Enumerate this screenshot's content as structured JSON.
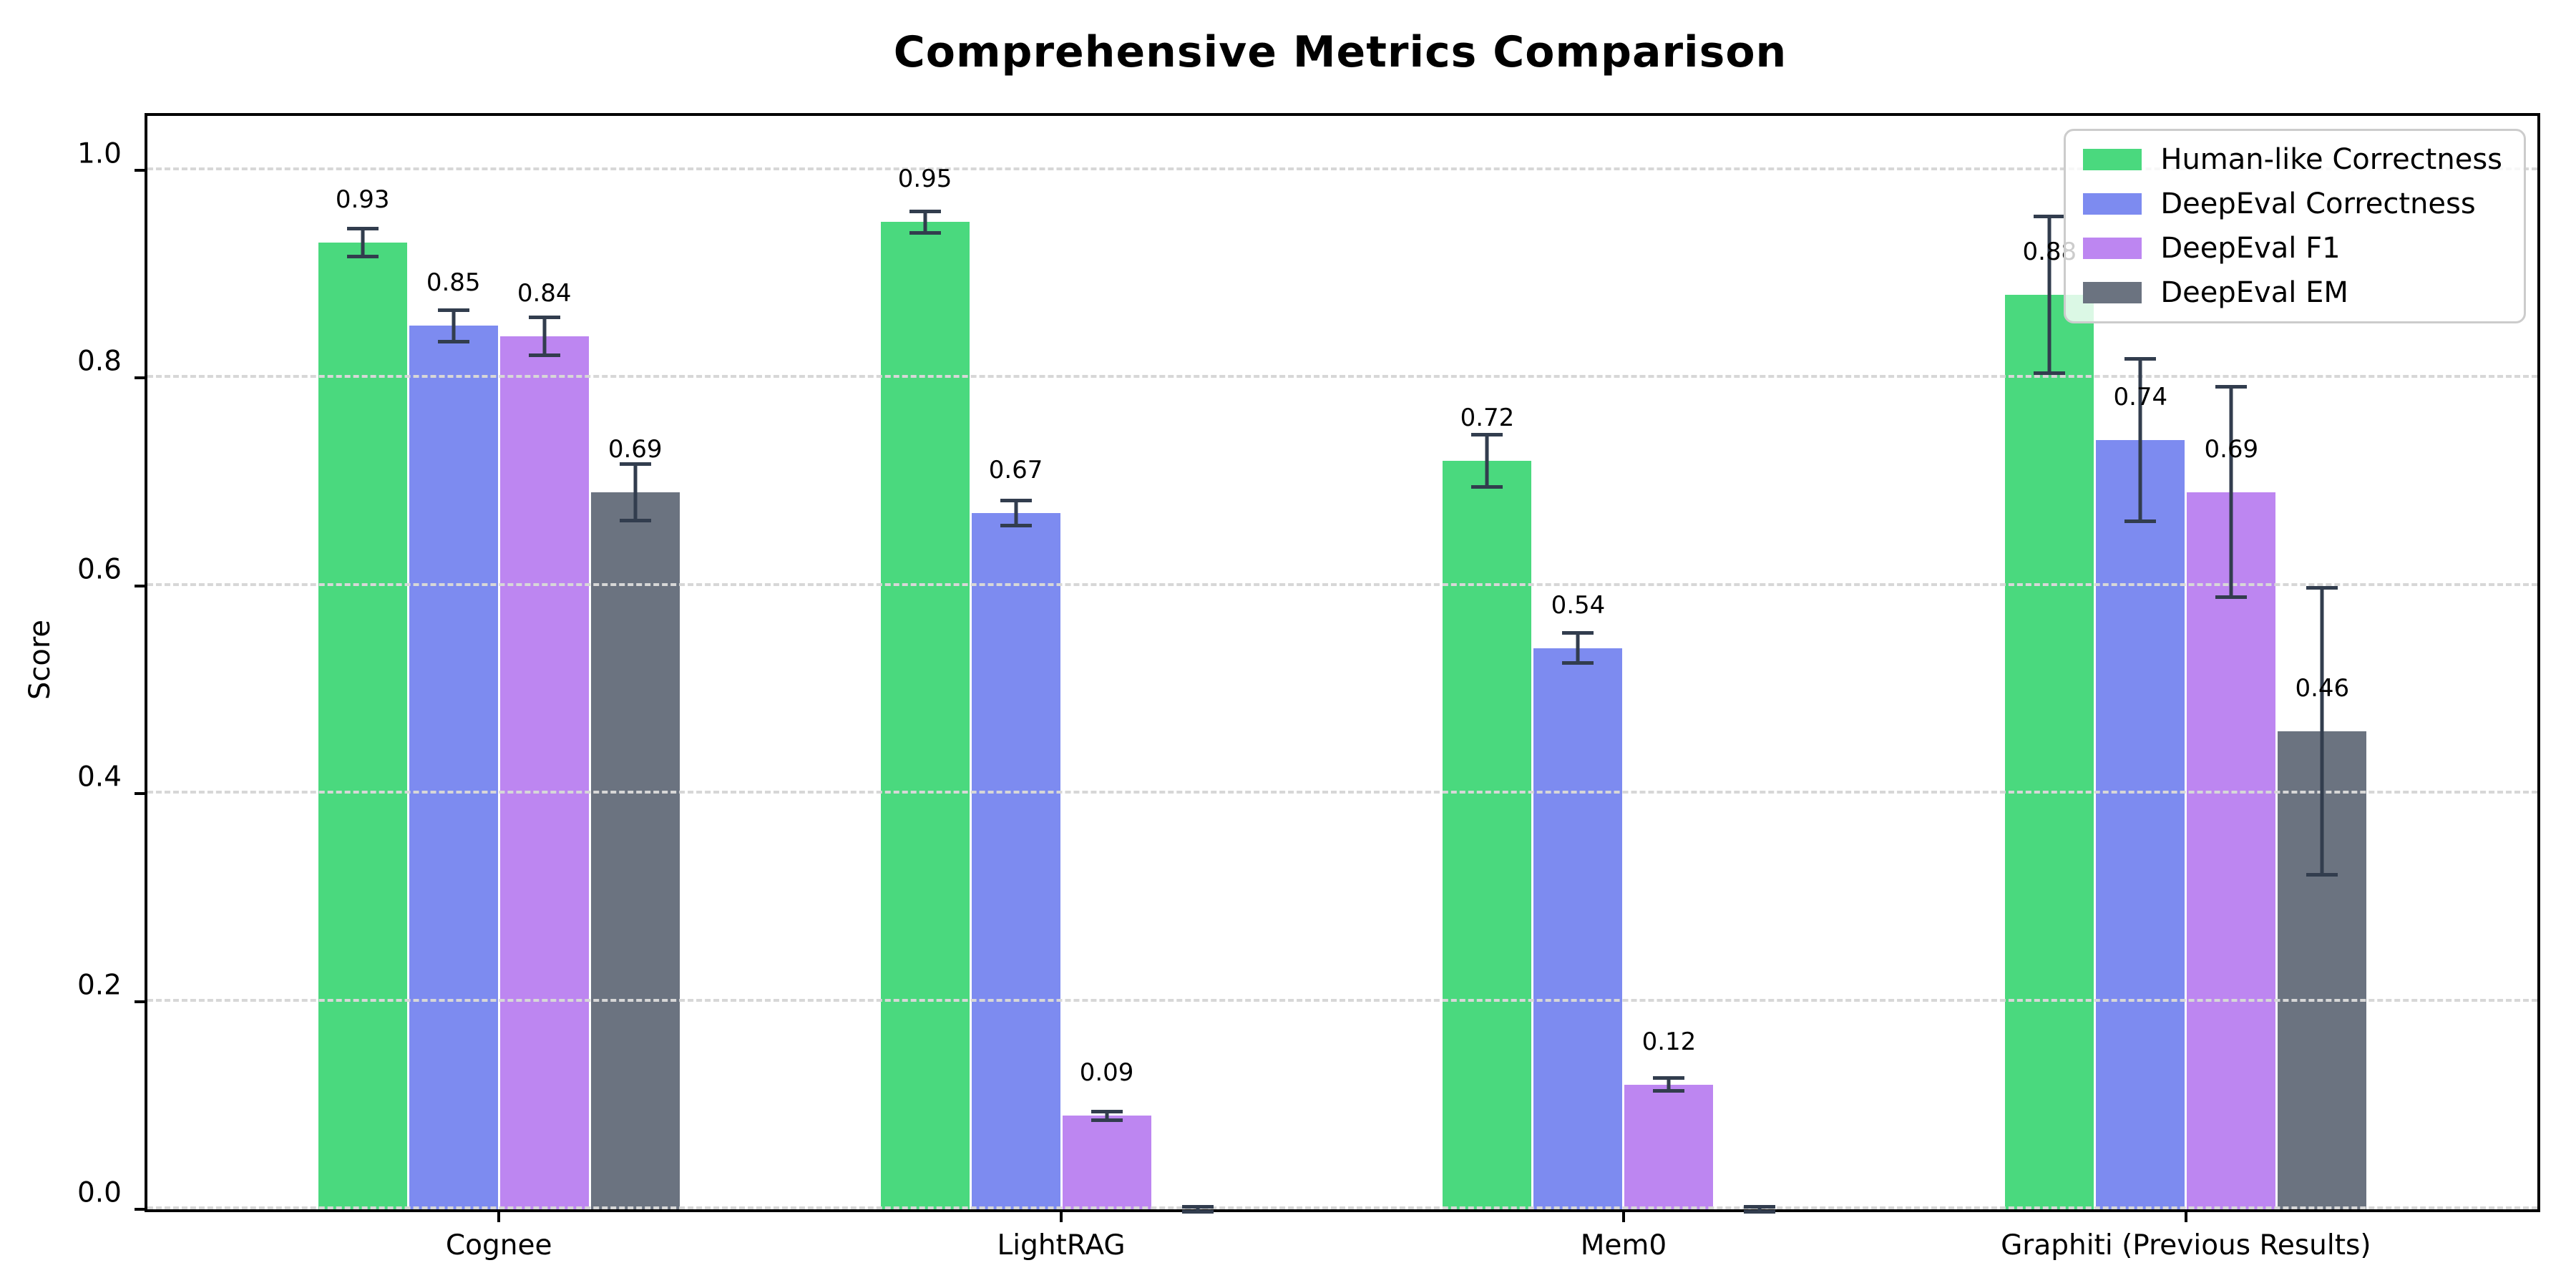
{
  "title": "Comprehensive Metrics Comparison",
  "y_axis_label": "Score",
  "chart_data": {
    "type": "bar",
    "title": "Comprehensive Metrics Comparison",
    "xlabel": "",
    "ylabel": "Score",
    "categories": [
      "Cognee",
      "LightRAG",
      "Mem0",
      "Graphiti (Previous Results)"
    ],
    "series": [
      {
        "name": "Human-like Correctness",
        "color": "#4ad97e",
        "values": [
          0.93,
          0.95,
          0.72,
          0.88
        ],
        "errors": [
          0.015,
          0.012,
          0.027,
          0.077
        ]
      },
      {
        "name": "DeepEval Correctness",
        "color": "#7d8bf0",
        "values": [
          0.85,
          0.67,
          0.54,
          0.74
        ],
        "errors": [
          0.017,
          0.014,
          0.016,
          0.08
        ]
      },
      {
        "name": "DeepEval F1",
        "color": "#bd86f1",
        "values": [
          0.84,
          0.09,
          0.12,
          0.69
        ],
        "errors": [
          0.02,
          0.006,
          0.008,
          0.103
        ]
      },
      {
        "name": "DeepEval EM",
        "color": "#6b7380",
        "values": [
          0.69,
          0.0,
          0.0,
          0.46
        ],
        "errors": [
          0.029,
          0.004,
          0.004,
          0.14
        ]
      }
    ],
    "value_label_format": "two_decimals",
    "zero_bars_unlabeled": true,
    "yticks": [
      "0.0",
      "0.2",
      "0.4",
      "0.6",
      "0.8",
      "1.0"
    ],
    "ylim": [
      0,
      1.052
    ],
    "grid": "horizontal dashed at each ytick, light gray, drawn over bars",
    "legend_position": "upper right",
    "errorbar_color": "#323d4e",
    "grid_color": "#d7d7d7"
  }
}
